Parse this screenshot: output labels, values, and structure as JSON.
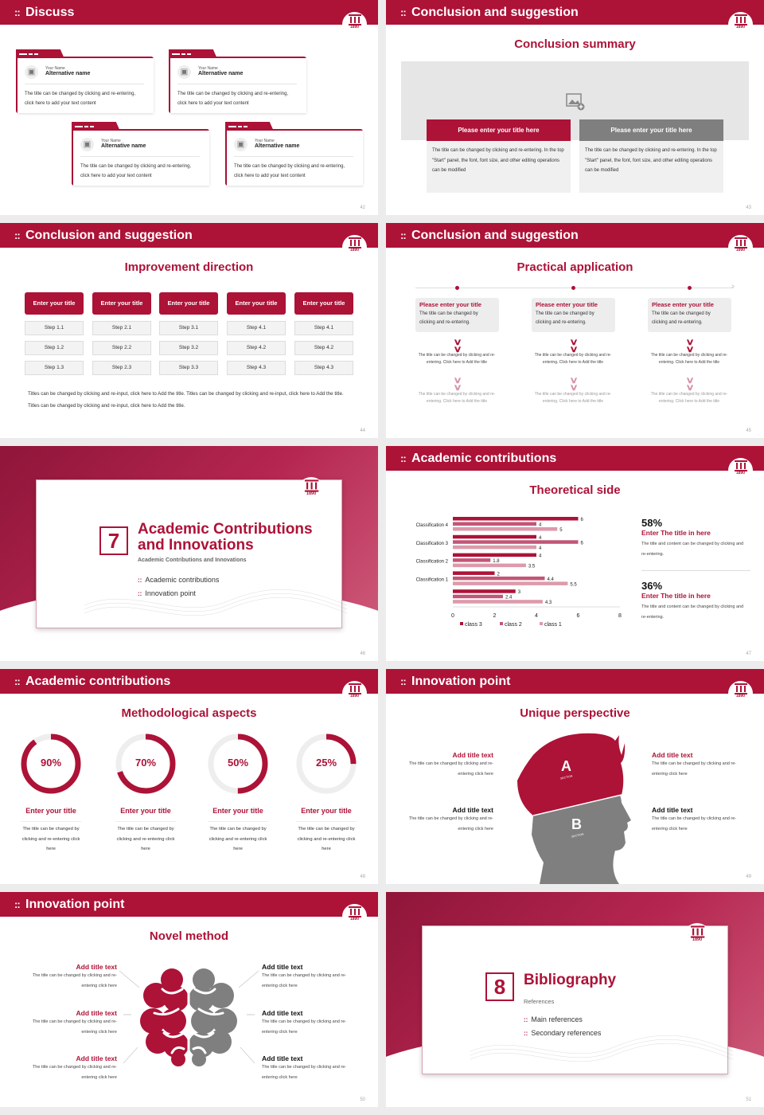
{
  "accent": "#ad1237",
  "logo_year": "1890",
  "s42": {
    "header": "Discuss",
    "page": "42",
    "cards": [
      {
        "small": "Your Name",
        "name": "Alternative name",
        "text": "The title can be changed by clicking and re-entering, click here to add your text content"
      },
      {
        "small": "Your Name",
        "name": "Alternative name",
        "text": "The title can be changed by clicking and re-entering, click here to add your text content"
      },
      {
        "small": "Your Name",
        "name": "Alternative name",
        "text": "The title can be changed by clicking and re-entering, click here to add your text content"
      },
      {
        "small": "Your Name",
        "name": "Alternative name",
        "text": "The title can be changed by clicking and re-entering, click here to add your text content"
      }
    ]
  },
  "s43": {
    "header": "Conclusion and suggestion",
    "page": "43",
    "title": "Conclusion summary",
    "boxes": [
      {
        "title": "Please enter your title here",
        "text": "The title can be changed by clicking and re-entering. In the top \"Start\" panel, the font, font size, and other editing operations can be modified"
      },
      {
        "title": "Please enter your title here",
        "text": "The title can be changed by clicking and re-entering. In the top \"Start\" panel, the font, font size, and other editing operations can be modified"
      }
    ]
  },
  "s44": {
    "header": "Conclusion and suggestion",
    "page": "44",
    "title": "Improvement direction",
    "columns": [
      {
        "title": "Enter your title",
        "steps": [
          "Step 1.1",
          "Step 1.2",
          "Step 1.3"
        ]
      },
      {
        "title": "Enter your title",
        "steps": [
          "Step 2.1",
          "Step 2.2",
          "Step 2.3"
        ]
      },
      {
        "title": "Enter your title",
        "steps": [
          "Step 3.1",
          "Step 3.2",
          "Step 3.3"
        ]
      },
      {
        "title": "Enter your title",
        "steps": [
          "Step 4.1",
          "Step 4.2",
          "Step 4.3"
        ]
      },
      {
        "title": "Enter your title",
        "steps": [
          "Step 4.1",
          "Step 4.2",
          "Step 4.3"
        ]
      }
    ],
    "paragraph": "Titles can be changed by clicking and re-input, click here to Add the title. Titles can be changed by clicking and re-input, click here to Add the title. Titles can be changed by clicking and re-input, click here to Add the title."
  },
  "s45": {
    "header": "Conclusion and suggestion",
    "page": "45",
    "title": "Practical application",
    "items": [
      {
        "title": "Please enter your title",
        "text": "The title can be changed by clicking and re-entering.",
        "detail1": "The title can be changed by clicking and re-entering. Click here to Add the title",
        "detail2": "The title can be changed by clicking and re-entering. Click here to Add the title"
      },
      {
        "title": "Please enter your title",
        "text": "The title can be changed by clicking and re-entering.",
        "detail1": "The title can be changed by clicking and re-entering. Click here to Add the title",
        "detail2": "The title can be changed by clicking and re-entering. Click here to Add the title"
      },
      {
        "title": "Please enter your title",
        "text": "The title can be changed by clicking and re-entering.",
        "detail1": "The title can be changed by clicking and re-entering. Click here to Add the title",
        "detail2": "The title can be changed by clicking and re-entering. Click here to Add the title"
      }
    ]
  },
  "s46": {
    "page": "46",
    "number": "7",
    "title": "Academic Contributions and Innovations",
    "subtitle": "Academic Contributions and Innovations",
    "bullets": [
      "Academic contributions",
      "Innovation point"
    ]
  },
  "s47": {
    "header": "Academic contributions",
    "page": "47",
    "title": "Theoretical side",
    "stats": [
      {
        "value": "58%",
        "title": "Enter The title in here",
        "text": "The title and content can be changed by clicking and re-entering."
      },
      {
        "value": "36%",
        "title": "Enter The title in here",
        "text": "The title and content can be changed by clicking and re-entering."
      }
    ]
  },
  "chart_data": {
    "type": "bar",
    "orientation": "horizontal",
    "categories": [
      "Classification 4",
      "Classification 3",
      "Classification 2",
      "Classification 1",
      ""
    ],
    "series": [
      {
        "name": "class 3",
        "color": "#ad1237",
        "values": [
          6,
          4,
          4,
          2,
          3
        ]
      },
      {
        "name": "class 2",
        "color": "#c25677",
        "values": [
          4,
          6,
          1.8,
          4.4,
          2.4
        ]
      },
      {
        "name": "class 1",
        "color": "#dc9aab",
        "values": [
          5,
          4,
          3.5,
          5.5,
          4.3
        ]
      }
    ],
    "xlim": [
      0,
      8
    ],
    "xticks": [
      "0",
      "2",
      "4",
      "6",
      "8"
    ],
    "grid": false,
    "legend": "bottom"
  },
  "s48": {
    "header": "Academic contributions",
    "page": "48",
    "title": "Methodological aspects",
    "rings": [
      {
        "percent": 90,
        "label": "90%",
        "title": "Enter your title",
        "text": "The title can be changed by clicking and re-entering click here"
      },
      {
        "percent": 70,
        "label": "70%",
        "title": "Enter your title",
        "text": "The title can be changed by clicking and re-entering click here"
      },
      {
        "percent": 50,
        "label": "50%",
        "title": "Enter your title",
        "text": "The title can be changed by clicking and re-entering click here"
      },
      {
        "percent": 25,
        "label": "25%",
        "title": "Enter your title",
        "text": "The title can be changed by clicking and re-entering click here"
      }
    ]
  },
  "s49": {
    "header": "Innovation point",
    "page": "49",
    "title": "Unique perspective",
    "section_a": "A",
    "section_b": "B",
    "section_word": "SECTION",
    "left": [
      {
        "title": "Add title text",
        "text": "The title can be changed by clicking and re-entering click here"
      },
      {
        "title": "Add title text",
        "text": "The title can be changed by clicking and re-entering click here"
      }
    ],
    "right": [
      {
        "title": "Add title text",
        "text": "The title can be changed by clicking and re-entering click here"
      },
      {
        "title": "Add title text",
        "text": "The title can be changed by clicking and re-entering click here"
      }
    ]
  },
  "s50": {
    "header": "Innovation point",
    "page": "50",
    "title": "Novel method",
    "left": [
      {
        "title": "Add title text",
        "text": "The title can be changed by clicking and re-entering click here"
      },
      {
        "title": "Add title text",
        "text": "The title can be changed by clicking and re-entering click here"
      },
      {
        "title": "Add title text",
        "text": "The title can be changed by clicking and re-entering click here"
      }
    ],
    "right": [
      {
        "title": "Add title text",
        "text": "The title can be changed by clicking and re-entering click here"
      },
      {
        "title": "Add title text",
        "text": "The title can be changed by clicking and re-entering click here"
      },
      {
        "title": "Add title text",
        "text": "The title can be changed by clicking and re-entering click here"
      }
    ]
  },
  "s51": {
    "page": "51",
    "number": "8",
    "title": "Bibliography",
    "subtitle": "References",
    "bullets": [
      "Main references",
      "Secondary references"
    ]
  }
}
